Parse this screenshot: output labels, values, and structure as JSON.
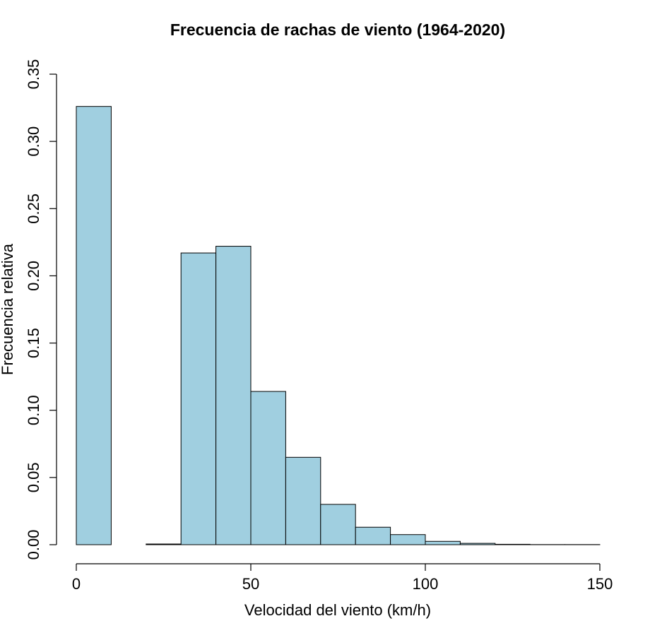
{
  "chart_data": {
    "type": "bar",
    "title": "Frecuencia de rachas de viento (1964-2020)",
    "xlabel": "Velocidad del viento (km/h)",
    "ylabel": "Frecuencia relativa",
    "bins": [
      {
        "from": 0,
        "to": 10,
        "value": 0.326
      },
      {
        "from": 10,
        "to": 20,
        "value": 0.0
      },
      {
        "from": 20,
        "to": 30,
        "value": 0.0005
      },
      {
        "from": 30,
        "to": 40,
        "value": 0.217
      },
      {
        "from": 40,
        "to": 50,
        "value": 0.222
      },
      {
        "from": 50,
        "to": 60,
        "value": 0.114
      },
      {
        "from": 60,
        "to": 70,
        "value": 0.065
      },
      {
        "from": 70,
        "to": 80,
        "value": 0.03
      },
      {
        "from": 80,
        "to": 90,
        "value": 0.013
      },
      {
        "from": 90,
        "to": 100,
        "value": 0.0075
      },
      {
        "from": 100,
        "to": 110,
        "value": 0.0025
      },
      {
        "from": 110,
        "to": 120,
        "value": 0.001
      },
      {
        "from": 120,
        "to": 130,
        "value": 0.0003
      },
      {
        "from": 130,
        "to": 140,
        "value": 0.0001
      },
      {
        "from": 140,
        "to": 150,
        "value": 0.0001
      }
    ],
    "xlim": [
      0,
      150
    ],
    "ylim": [
      0,
      0.35
    ],
    "xticks": [
      0,
      50,
      100,
      150
    ],
    "xtick_labels": [
      "0",
      "50",
      "100",
      "150"
    ],
    "yticks": [
      0,
      0.05,
      0.1,
      0.15,
      0.2,
      0.25,
      0.3,
      0.35
    ],
    "ytick_labels": [
      "0.00",
      "0.05",
      "0.10",
      "0.15",
      "0.20",
      "0.25",
      "0.30",
      "0.35"
    ],
    "bar_color": "#a0cfe0",
    "grid": false
  }
}
